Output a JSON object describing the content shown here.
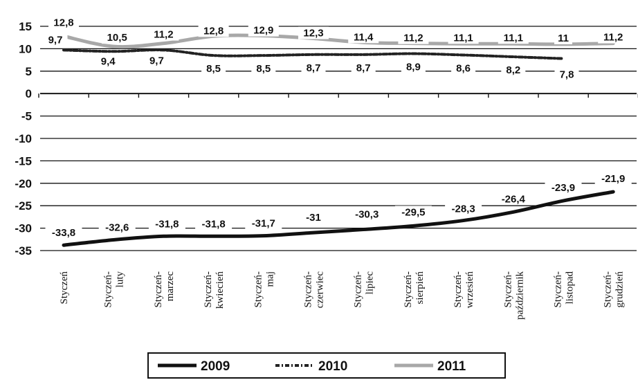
{
  "chart_data": {
    "type": "line",
    "title": "",
    "xlabel": "",
    "ylabel": "",
    "ylim": [
      -35,
      15
    ],
    "y_ticks": [
      15,
      10,
      5,
      0,
      -5,
      -10,
      -15,
      -20,
      -25,
      -30,
      -35
    ],
    "grid": true,
    "legend_position": "bottom",
    "categories": [
      [
        "Styczeń"
      ],
      [
        "Styczeń-",
        "luty"
      ],
      [
        "Styczeń-",
        "marzec"
      ],
      [
        "Styczeń-",
        "kwiecień"
      ],
      [
        "Styczeń-",
        "maj"
      ],
      [
        "Styczeń-",
        "czerwiec"
      ],
      [
        "Styczeń-",
        "lipiec"
      ],
      [
        "Styczeń-",
        "sierpień"
      ],
      [
        "Styczeń-",
        "wrzesień"
      ],
      [
        "Styczeń-",
        "październik"
      ],
      [
        "Styczeń-",
        "listopad"
      ],
      [
        "Styczeń-",
        "grudzień"
      ]
    ],
    "series": [
      {
        "name": "2009",
        "style": "solid-black",
        "color": "#111111",
        "values": [
          -33.8,
          -32.6,
          -31.8,
          -31.8,
          -31.7,
          -31,
          -30.3,
          -29.5,
          -28.3,
          -26.4,
          -23.9,
          -21.9
        ],
        "labels": [
          "-33,8",
          "-32,6",
          "-31,8",
          "-31,8",
          "-31,7",
          "-31",
          "-30,3",
          "-29,5",
          "-28,3",
          "-26,4",
          "-23,9",
          "-21,9"
        ]
      },
      {
        "name": "2010",
        "style": "dash-dot-black",
        "color": "#222222",
        "values": [
          9.7,
          9.4,
          9.7,
          8.5,
          8.5,
          8.7,
          8.7,
          8.9,
          8.6,
          8.2,
          7.8,
          null
        ],
        "labels": [
          "9,7",
          "9,4",
          "9,7",
          "8,5",
          "8,5",
          "8,7",
          "8,7",
          "8,9",
          "8,6",
          "8,2",
          "7,8",
          ""
        ]
      },
      {
        "name": "2011",
        "style": "solid-gray",
        "color": "#a8a8a8",
        "values": [
          12.8,
          10.5,
          11.2,
          12.8,
          12.9,
          12.3,
          11.4,
          11.2,
          11.1,
          11.1,
          11,
          11.2
        ],
        "labels": [
          "12,8",
          "10,5",
          "11,2",
          "12,8",
          "12,9",
          "12,3",
          "11,4",
          "11,2",
          "11,1",
          "11,1",
          "11",
          "11,2"
        ]
      }
    ]
  }
}
